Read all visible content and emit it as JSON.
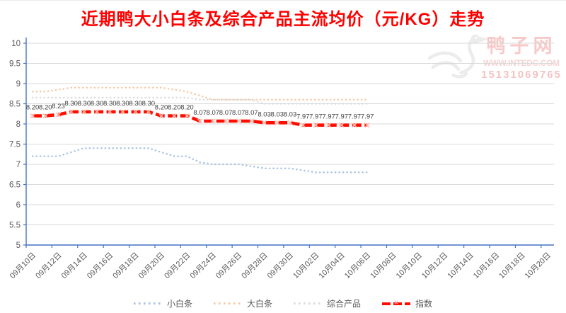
{
  "title": "近期鸭大小白条及综合产品主流均价（元/KG）走势",
  "watermark": {
    "logo": "duck-logo",
    "brand": "鸭子网",
    "url": "WWW.INTEDC.COM",
    "phone": "15131069765"
  },
  "colors": {
    "title": "#FF0000",
    "axis": "#4472C4",
    "gridline": "#D9D9D9",
    "tick_label": "#595959",
    "data_label": "#3F3F3F",
    "index_marker": "#FFBFB2"
  },
  "chart_data": {
    "type": "line",
    "title": "近期鸭大小白条及综合产品主流均价（元/KG）走势",
    "xlabel": "",
    "ylabel": "",
    "ylim": [
      5,
      10
    ],
    "y_ticks": [
      "10",
      "9.5",
      "9",
      "8.5",
      "8",
      "7.5",
      "7",
      "6.5",
      "6",
      "5.5",
      "5"
    ],
    "grid": true,
    "legend_position": "bottom",
    "x_total_slots": 41,
    "x_axis_tick_labels": [
      "09月10日",
      "09月12日",
      "09月14日",
      "09月16日",
      "09月18日",
      "09月20日",
      "09月22日",
      "09月24日",
      "09月26日",
      "09月28日",
      "09月30日",
      "10月02日",
      "10月04日",
      "10月06日",
      "10月08日",
      "10月10日",
      "10月12日",
      "10月14日",
      "10月16日",
      "10月18日",
      "10月20日"
    ],
    "categories": [
      "09月10日",
      "09月11日",
      "09月12日",
      "09月13日",
      "09月14日",
      "09月15日",
      "09月16日",
      "09月17日",
      "09月18日",
      "09月19日",
      "09月20日",
      "09月21日",
      "09月22日",
      "09月23日",
      "09月24日",
      "09月25日",
      "09月26日",
      "09月27日",
      "09月28日",
      "09月29日",
      "09月30日",
      "10月01日",
      "10月02日",
      "10月03日",
      "10月04日",
      "10月05日",
      "10月06日"
    ],
    "series": [
      {
        "name": "小白条",
        "key": "small-white-strip",
        "color": "#A9C2E4",
        "style": "dotted",
        "labeled": false,
        "values": [
          7.2,
          7.2,
          7.2,
          7.3,
          7.4,
          7.4,
          7.4,
          7.4,
          7.4,
          7.4,
          7.3,
          7.2,
          7.2,
          7.05,
          7.0,
          7.0,
          7.0,
          6.95,
          6.9,
          6.9,
          6.9,
          6.85,
          6.8,
          6.8,
          6.8,
          6.8,
          6.8
        ]
      },
      {
        "name": "大白条",
        "key": "large-white-strip",
        "color": "#F6C9A7",
        "style": "dotted",
        "labeled": false,
        "values": [
          8.8,
          8.8,
          8.85,
          8.9,
          8.9,
          8.9,
          8.9,
          8.9,
          8.9,
          8.9,
          8.9,
          8.85,
          8.8,
          8.7,
          8.6,
          8.6,
          8.6,
          8.6,
          8.6,
          8.6,
          8.6,
          8.6,
          8.6,
          8.6,
          8.6,
          8.6,
          8.6
        ]
      },
      {
        "name": "综合产品",
        "key": "composite-product",
        "color": "#DBDBDB",
        "style": "dotted",
        "labeled": false,
        "values": [
          8.65,
          8.65,
          8.65,
          8.65,
          8.65,
          8.65,
          8.65,
          8.65,
          8.65,
          8.65,
          8.65,
          8.65,
          8.65,
          8.6,
          8.6,
          8.6,
          8.6,
          8.6,
          8.5,
          8.5,
          8.5,
          8.5,
          8.5,
          8.5,
          8.5,
          8.5,
          8.5
        ]
      },
      {
        "name": "指数",
        "key": "index",
        "color": "#FE0D00",
        "style": "dashed-x",
        "labeled": true,
        "values": [
          8.2,
          8.2,
          8.23,
          8.3,
          8.3,
          8.3,
          8.3,
          8.3,
          8.3,
          8.3,
          8.2,
          8.2,
          8.2,
          8.07,
          8.07,
          8.07,
          8.07,
          8.07,
          8.03,
          8.03,
          8.03,
          7.97,
          7.97,
          7.97,
          7.97,
          7.97,
          7.97
        ]
      }
    ]
  }
}
